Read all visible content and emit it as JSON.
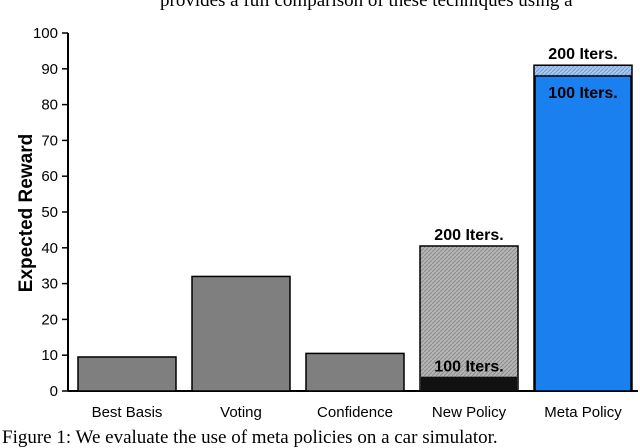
{
  "top_text": "provides a full comparison of these techniques using a",
  "caption": "Figure 1: We evaluate the use of meta policies on a car simulator.",
  "chart_data": {
    "type": "bar",
    "ylabel": "Expected Reward",
    "xlabel": "",
    "ylim": [
      0,
      100
    ],
    "yticks": [
      0,
      10,
      20,
      30,
      40,
      50,
      60,
      70,
      80,
      90,
      100
    ],
    "categories": [
      "Best Basis",
      "Voting",
      "Confidence",
      "New Policy",
      "Meta Policy"
    ],
    "values": [
      9.5,
      32,
      10.5,
      40.5,
      91
    ],
    "stacked_inner": [
      {
        "category": "New Policy",
        "value": 4,
        "label": "100 Iters."
      },
      {
        "category": "Meta Policy",
        "value": 88,
        "label": "100 Iters."
      }
    ],
    "outer_labels": [
      {
        "category": "New Policy",
        "label": "200 Iters."
      },
      {
        "category": "Meta Policy",
        "label": "200 Iters."
      }
    ],
    "colors": {
      "default_bar": "#7f7f7f",
      "new_policy_200": "#b3b3b3",
      "new_policy_100": "#111111",
      "meta_policy_200": "#a9c8ee",
      "meta_policy_100": "#1a80f0"
    }
  }
}
